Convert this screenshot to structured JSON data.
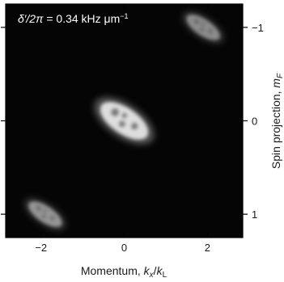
{
  "figure": {
    "annotation": {
      "prefix": "δ′/2π",
      "text": " = 0.34 kHz μm",
      "exponent": "−1"
    },
    "x_axis": {
      "label_prefix": "Momentum, ",
      "label_num": "k",
      "label_num_sub": "x",
      "label_slash": "/",
      "label_den": "k",
      "label_den_sub": "L"
    },
    "y_axis": {
      "label_prefix": "Spin projection, ",
      "label_var": "m",
      "label_var_sub": "F"
    }
  },
  "chart_data": {
    "type": "heatmap",
    "xlabel": "Momentum, kx/kL",
    "ylabel": "Spin projection, mF",
    "x_ticks": [
      "−2",
      "0",
      "2"
    ],
    "y_ticks_right": [
      "−1",
      "0",
      "1"
    ],
    "xlim": [
      -2.85,
      2.85
    ],
    "ylim": [
      -1.25,
      1.25
    ],
    "clouds": [
      {
        "x": 1.9,
        "y": -1.0,
        "brightness": 0.55
      },
      {
        "x": 0.0,
        "y": 0.0,
        "brightness": 1.0
      },
      {
        "x": -1.9,
        "y": 1.0,
        "brightness": 0.6
      }
    ],
    "colors": {
      "background": "#050505",
      "signal": "#ffffff"
    }
  }
}
